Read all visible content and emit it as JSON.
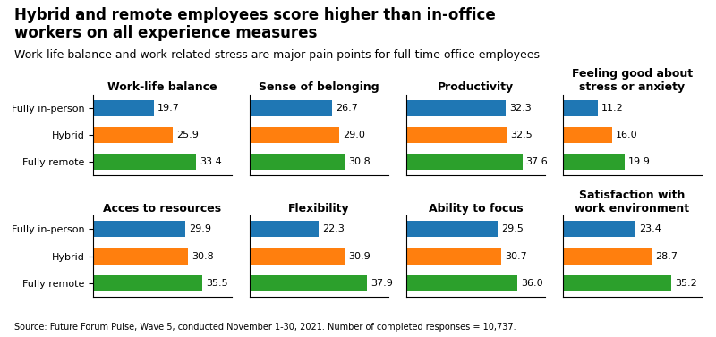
{
  "title": "Hybrid and remote employees score higher than in-office\nworkers on all experience measures",
  "subtitle": "Work-life balance and work-related stress are major pain points for full-time office employees",
  "annotations": [
    "Source: Future Forum Pulse, Wave 5, conducted November 1-30, 2021. Number of completed responses = 10,737."
  ],
  "chart_data": [
    {
      "type": "bar",
      "orientation": "horizontal",
      "title": "Work-life balance",
      "categories": [
        "Fully in-person",
        "Hybrid",
        "Fully remote"
      ],
      "values": [
        19.7,
        25.9,
        33.4
      ],
      "xlim": [
        0,
        45
      ],
      "xticks": [],
      "data_labels": true,
      "tick_labels": "y"
    },
    {
      "type": "bar",
      "orientation": "horizontal",
      "title": "Sense of belonging",
      "categories": [
        "Fully in-person",
        "Hybrid",
        "Fully remote"
      ],
      "values": [
        26.7,
        29.0,
        30.8
      ],
      "xlim": [
        0,
        45
      ],
      "xticks": [],
      "data_labels": true,
      "tick_labels": false
    },
    {
      "type": "bar",
      "orientation": "horizontal",
      "title": "Productivity",
      "categories": [
        "Fully in-person",
        "Hybrid",
        "Fully remote"
      ],
      "values": [
        32.3,
        32.5,
        37.6
      ],
      "xlim": [
        0,
        45
      ],
      "xticks": [],
      "data_labels": true,
      "tick_labels": false
    },
    {
      "type": "bar",
      "orientation": "horizontal",
      "title": "Feeling good about\nstress or anxiety",
      "categories": [
        "Fully in-person",
        "Hybrid",
        "Fully remote"
      ],
      "values": [
        11.2,
        16.0,
        19.9
      ],
      "xlim": [
        0,
        45
      ],
      "xticks": [],
      "data_labels": true,
      "tick_labels": false
    },
    {
      "type": "bar",
      "orientation": "horizontal",
      "title": "Acces to resources",
      "categories": [
        "Fully in-person",
        "Hybrid",
        "Fully remote"
      ],
      "values": [
        29.9,
        30.8,
        35.5
      ],
      "xlim": [
        0,
        45
      ],
      "xticks": [],
      "data_labels": true,
      "tick_labels": "y"
    },
    {
      "type": "bar",
      "orientation": "horizontal",
      "title": "Flexibility",
      "categories": [
        "Fully in-person",
        "Hybrid",
        "Fully remote"
      ],
      "values": [
        22.3,
        30.9,
        37.9
      ],
      "xlim": [
        0,
        45
      ],
      "xticks": [],
      "data_labels": true,
      "tick_labels": false
    },
    {
      "type": "bar",
      "orientation": "horizontal",
      "title": "Ability to focus",
      "categories": [
        "Fully in-person",
        "Hybrid",
        "Fully remote"
      ],
      "values": [
        29.5,
        30.7,
        36.0
      ],
      "xlim": [
        0,
        45
      ],
      "xticks": [],
      "data_labels": true,
      "tick_labels": false
    },
    {
      "type": "bar",
      "orientation": "horizontal",
      "title": "Satisfaction with\nwork environment",
      "categories": [
        "Fully in-person",
        "Hybrid",
        "Fully remote"
      ],
      "values": [
        23.4,
        28.7,
        35.2
      ],
      "xlim": [
        0,
        45
      ],
      "xticks": [],
      "data_labels": true,
      "tick_labels": false
    }
  ]
}
